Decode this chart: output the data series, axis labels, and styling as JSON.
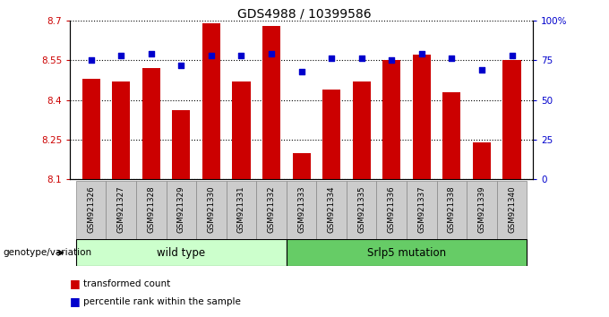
{
  "title": "GDS4988 / 10399586",
  "samples": [
    "GSM921326",
    "GSM921327",
    "GSM921328",
    "GSM921329",
    "GSM921330",
    "GSM921331",
    "GSM921332",
    "GSM921333",
    "GSM921334",
    "GSM921335",
    "GSM921336",
    "GSM921337",
    "GSM921338",
    "GSM921339",
    "GSM921340"
  ],
  "transformed_count": [
    8.48,
    8.47,
    8.52,
    8.36,
    8.69,
    8.47,
    8.68,
    8.2,
    8.44,
    8.47,
    8.55,
    8.57,
    8.43,
    8.24,
    8.55
  ],
  "percentile_rank": [
    75,
    78,
    79,
    72,
    78,
    78,
    79,
    68,
    76,
    76,
    75,
    79,
    76,
    69,
    78
  ],
  "ylim_left": [
    8.1,
    8.7
  ],
  "ylim_right": [
    0,
    100
  ],
  "yticks_left": [
    8.1,
    8.25,
    8.4,
    8.55,
    8.7
  ],
  "yticks_right": [
    0,
    25,
    50,
    75,
    100
  ],
  "ytick_labels_left": [
    "8.1",
    "8.25",
    "8.4",
    "8.55",
    "8.7"
  ],
  "ytick_labels_right": [
    "0",
    "25",
    "50",
    "75",
    "100%"
  ],
  "bar_color": "#cc0000",
  "dot_color": "#0000cc",
  "wild_type_count": 7,
  "mutation_count": 8,
  "wild_type_label": "wild type",
  "mutation_label": "Srlp5 mutation",
  "genotype_label": "genotype/variation",
  "legend_bar_label": "transformed count",
  "legend_dot_label": "percentile rank within the sample",
  "plot_bg": "#ffffff",
  "wild_type_bg": "#ccffcc",
  "mutation_bg": "#66cc66",
  "tick_bg": "#cccccc"
}
